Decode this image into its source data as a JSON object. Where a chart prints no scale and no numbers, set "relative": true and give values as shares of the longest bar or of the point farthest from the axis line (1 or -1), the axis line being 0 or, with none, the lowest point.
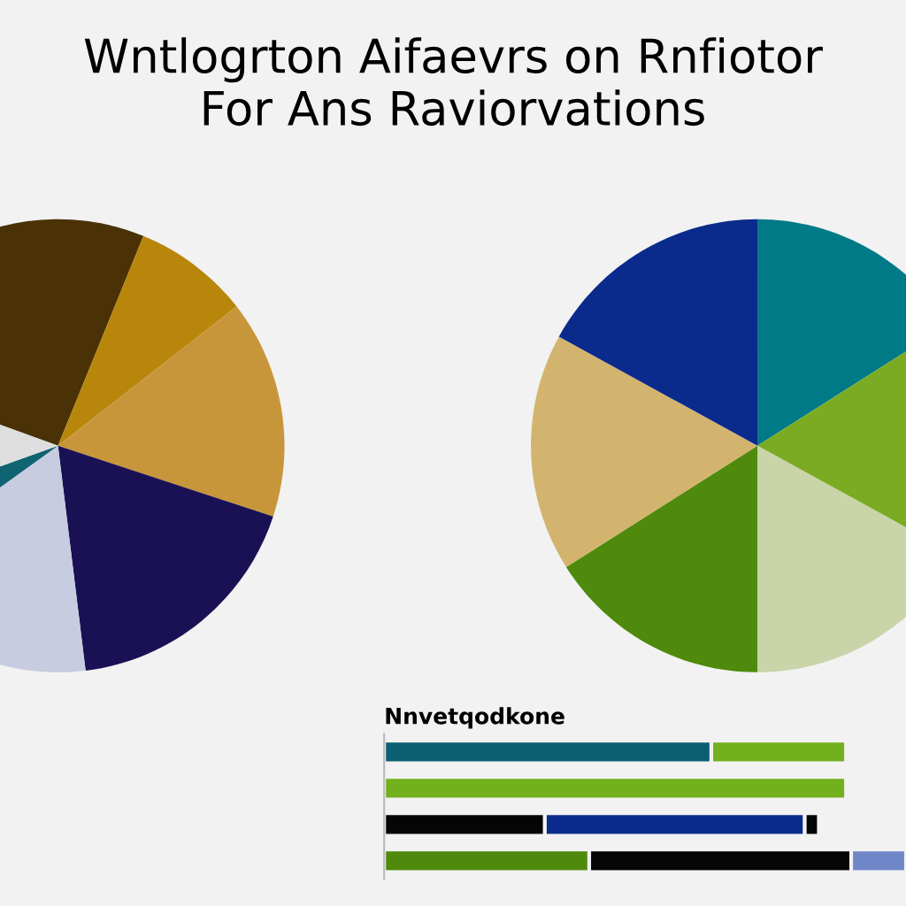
{
  "chart_data": [
    {
      "type": "pie",
      "title": "Wntlogrton Aifaevrs on Rnfiotor\nFor Ans Raviorvations",
      "categories": [
        null,
        null,
        null,
        null,
        null,
        null,
        null
      ],
      "values": [
        25.6,
        8.3,
        15.6,
        18,
        17,
        4.5,
        11
      ],
      "colors": [
        "#4a3206",
        "#b8860b",
        "#c8963a",
        "#1a1155",
        "#c8cce0",
        "#0e6470",
        "#dedede"
      ]
    },
    {
      "type": "pie",
      "categories": [
        null,
        null,
        null,
        null,
        null,
        null
      ],
      "values": [
        16,
        17,
        17,
        16,
        17,
        17
      ],
      "colors": [
        "#007a87",
        "#7aab23",
        "#c9d4a8",
        "#4f8a0c",
        "#d2b46e",
        "#0a2a8c"
      ]
    },
    {
      "type": "bar",
      "orientation": "horizontal",
      "stacked": true,
      "relative": true,
      "title": "Nnvetqodkone",
      "categories": [
        null,
        null,
        null,
        null
      ],
      "series": [
        {
          "values": [
            0.627,
            0.885,
            0.308,
            0.393
          ],
          "colors": [
            "#0a5f70",
            "#72b01e",
            "#050505",
            "#4f8a0c"
          ]
        },
        {
          "values": [
            0.258,
            null,
            0.498,
            0.502
          ],
          "colors": [
            "#72b01e",
            null,
            "#0a2a8c",
            "#050505"
          ]
        },
        {
          "values": [
            null,
            null,
            0.027,
            0.105
          ],
          "colors": [
            null,
            null,
            "#050505",
            "#6f86c8"
          ]
        }
      ]
    }
  ]
}
